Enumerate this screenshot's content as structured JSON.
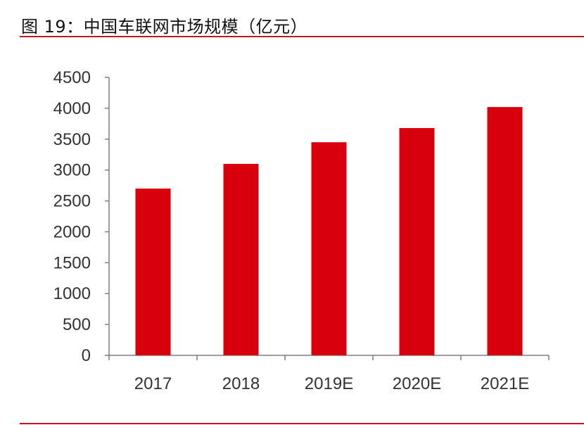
{
  "title": "图 19：中国车联网市场规模（亿元）",
  "colors": {
    "bar": "#d9000d",
    "axis": "#7f7f7f",
    "rule": "#c0181f"
  },
  "chart_data": {
    "type": "bar",
    "title": "图 19：中国车联网市场规模（亿元）",
    "categories": [
      "2017",
      "2018",
      "2019E",
      "2020E",
      "2021E"
    ],
    "values": [
      2700,
      3100,
      3450,
      3680,
      4020
    ],
    "yticks": [
      "0",
      "500",
      "1000",
      "1500",
      "2000",
      "2500",
      "3000",
      "3500",
      "4000",
      "4500"
    ],
    "ylim": [
      0,
      4500
    ],
    "xlabel": "",
    "ylabel": "",
    "grid": false,
    "legend": "none"
  }
}
